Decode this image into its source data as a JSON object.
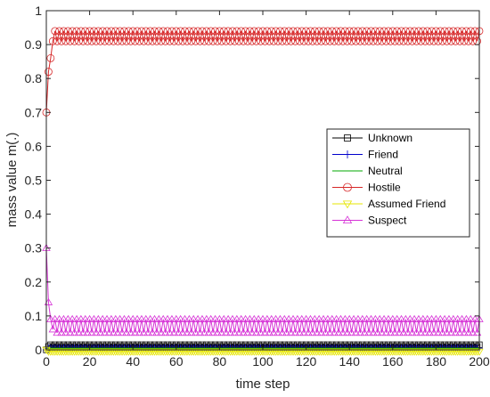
{
  "chart_data": {
    "type": "line",
    "title": "",
    "xlabel": "time step",
    "ylabel": "mass value m(.)",
    "xlim": [
      0,
      200
    ],
    "ylim": [
      0,
      1
    ],
    "xticks": [
      0,
      20,
      40,
      60,
      80,
      100,
      120,
      140,
      160,
      180,
      200
    ],
    "yticks": [
      0,
      0.1,
      0.2,
      0.3,
      0.4,
      0.5,
      0.6,
      0.7,
      0.8,
      0.9,
      1
    ],
    "ytick_labels": [
      "0",
      "0.1",
      "0.2",
      "0.3",
      "0.4",
      "0.5",
      "0.6",
      "0.7",
      "0.8",
      "0.9",
      "1"
    ],
    "grid": false,
    "legend_position": "center-right",
    "series": [
      {
        "name": "Unknown",
        "color": "#000000",
        "marker": "square",
        "initial": [
          0,
          0.01,
          0.015
        ],
        "high": 0.015,
        "low": 0.01,
        "start_value": 0
      },
      {
        "name": "Friend",
        "color": "#0000cc",
        "marker": "plus",
        "initial": [
          0,
          0.005,
          0.005
        ],
        "high": 0.005,
        "low": 0.005,
        "start_value": 0
      },
      {
        "name": "Neutral",
        "color": "#00aa00",
        "marker": "none",
        "initial": [
          0,
          0.005,
          0.005
        ],
        "high": 0.005,
        "low": 0.005,
        "start_value": 0
      },
      {
        "name": "Hostile",
        "color": "#d62728",
        "marker": "circle",
        "initial": [
          0.7,
          0.82,
          0.86,
          0.91
        ],
        "high": 0.94,
        "low": 0.91,
        "start_value": 0.7
      },
      {
        "name": "Assumed Friend",
        "color": "#e6e600",
        "marker": "triangle-down",
        "initial": [
          0,
          -0.005,
          -0.005
        ],
        "high": -0.005,
        "low": -0.005,
        "start_value": 0
      },
      {
        "name": "Suspect",
        "color": "#d633d6",
        "marker": "triangle-up",
        "initial": [
          0.3,
          0.14,
          0.09,
          0.06
        ],
        "high": 0.09,
        "low": 0.05,
        "start_value": 0.3
      }
    ]
  }
}
